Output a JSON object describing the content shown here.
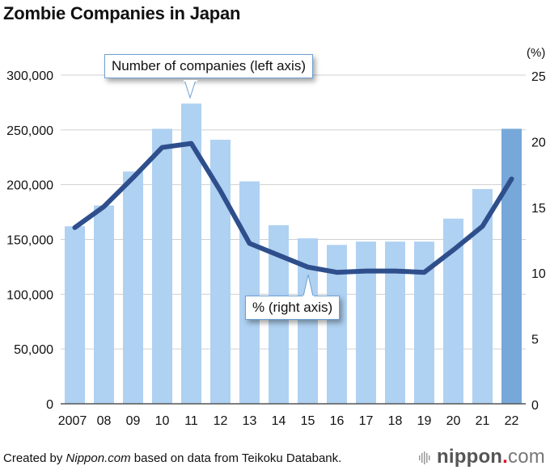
{
  "title": "Zombie Companies in Japan",
  "source": {
    "prefix": "Created by ",
    "brand": "Nippon.com",
    "suffix": " based on data from Teikoku Databank."
  },
  "logo": {
    "name": "nippon",
    "dot": ".",
    "tld": "com"
  },
  "callouts": {
    "left": "Number of companies (left axis)",
    "right": "% (right axis)"
  },
  "colors": {
    "bar": "#afd1f2",
    "bar_highlight": "#77a8d9",
    "line": "#2e4f8c",
    "grid": "#d0d0d0",
    "axis": "#555555",
    "callout_border": "#6f9fd3",
    "logo_dot": "#e8001c"
  },
  "chart_data": {
    "type": "bar",
    "title": "Zombie Companies in Japan",
    "categories": [
      "2007",
      "08",
      "09",
      "10",
      "11",
      "12",
      "13",
      "14",
      "15",
      "16",
      "17",
      "18",
      "19",
      "20",
      "21",
      "22"
    ],
    "series": [
      {
        "name": "Number of companies (left axis)",
        "type": "bar",
        "axis": "left",
        "values": [
          162000,
          181000,
          212000,
          251000,
          274000,
          241000,
          203000,
          163000,
          151000,
          145000,
          148000,
          148000,
          148000,
          169000,
          196000,
          251000
        ],
        "highlight_index": 15
      },
      {
        "name": "% (right axis)",
        "type": "line",
        "axis": "right",
        "values": [
          13.4,
          15.0,
          17.2,
          19.5,
          19.8,
          16.2,
          12.2,
          11.3,
          10.4,
          10.0,
          10.1,
          10.1,
          10.0,
          11.7,
          13.5,
          17.1
        ]
      }
    ],
    "left_axis": {
      "ylim": [
        0,
        300000
      ],
      "ticks": [
        0,
        50000,
        100000,
        150000,
        200000,
        250000,
        300000
      ],
      "tick_labels": [
        "0",
        "50,000",
        "100,000",
        "150,000",
        "200,000",
        "250,000",
        "300,000"
      ]
    },
    "right_axis": {
      "unit": "(%)",
      "ylim": [
        0,
        25
      ],
      "ticks": [
        0,
        5,
        10,
        15,
        20,
        25
      ],
      "tick_labels": [
        "0",
        "5",
        "10",
        "15",
        "20",
        "25"
      ]
    },
    "grid": true,
    "xlabel": "",
    "ylabel": ""
  }
}
